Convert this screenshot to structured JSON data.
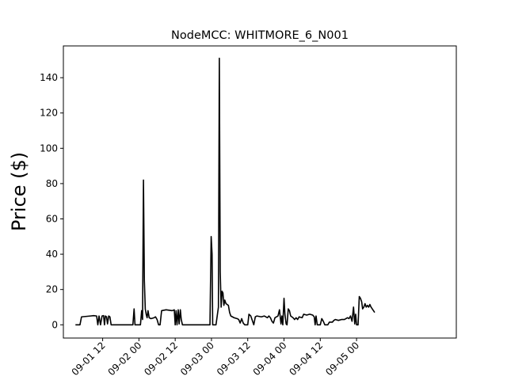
{
  "chart_data": {
    "type": "line",
    "title": "NodeMCC: WHITMORE_6_N001",
    "xlabel": "",
    "ylabel": "Price ($)",
    "xlim": [
      -0.083,
      10.75
    ],
    "ylim": [
      -7.5,
      158
    ],
    "x_unit": "hours since 09-01 00:00",
    "x_ticks": [
      {
        "value": 12,
        "label": "09-01 12"
      },
      {
        "value": 24,
        "label": "09-02 00"
      },
      {
        "value": 36,
        "label": "09-02 12"
      },
      {
        "value": 48,
        "label": "09-03 00"
      },
      {
        "value": 60,
        "label": "09-03 12"
      },
      {
        "value": 72,
        "label": "09-04 00"
      },
      {
        "value": 84,
        "label": "09-04 12"
      },
      {
        "value": 96,
        "label": "09-05 00"
      }
    ],
    "y_ticks": [
      0,
      20,
      40,
      60,
      80,
      100,
      120,
      140
    ],
    "grid": false,
    "legend": "none",
    "series": [
      {
        "name": "",
        "color": "#000000",
        "points": [
          [
            3.0,
            0
          ],
          [
            4.5,
            0
          ],
          [
            5.0,
            4.5
          ],
          [
            8.0,
            5.0
          ],
          [
            9.0,
            5.2
          ],
          [
            10.0,
            5.0
          ],
          [
            10.4,
            0
          ],
          [
            10.8,
            5.0
          ],
          [
            11.3,
            0
          ],
          [
            11.8,
            5.0
          ],
          [
            12.3,
            5.2
          ],
          [
            12.6,
            0
          ],
          [
            12.9,
            5.0
          ],
          [
            13.3,
            4.5
          ],
          [
            13.6,
            0.5
          ],
          [
            14.0,
            5.0
          ],
          [
            14.4,
            4.5
          ],
          [
            14.8,
            0
          ],
          [
            22.0,
            0
          ],
          [
            22.4,
            9.0
          ],
          [
            22.7,
            0
          ],
          [
            24.5,
            0
          ],
          [
            24.9,
            8.0
          ],
          [
            25.2,
            3.0
          ],
          [
            25.5,
            82.0
          ],
          [
            25.8,
            25.0
          ],
          [
            26.1,
            9.0
          ],
          [
            26.4,
            6.0
          ],
          [
            26.7,
            4.0
          ],
          [
            27.0,
            8.0
          ],
          [
            27.4,
            4.0
          ],
          [
            28.0,
            3.5
          ],
          [
            29.0,
            4.0
          ],
          [
            29.5,
            4.5
          ],
          [
            30.0,
            3.0
          ],
          [
            30.5,
            0
          ],
          [
            31.0,
            0
          ],
          [
            31.5,
            8.0
          ],
          [
            33.0,
            8.5
          ],
          [
            35.0,
            8.0
          ],
          [
            35.7,
            8.5
          ],
          [
            36.0,
            0
          ],
          [
            36.3,
            8.0
          ],
          [
            36.6,
            0
          ],
          [
            37.0,
            8.5
          ],
          [
            37.3,
            0.5
          ],
          [
            37.7,
            8.5
          ],
          [
            38.0,
            3.0
          ],
          [
            38.4,
            0
          ],
          [
            47.5,
            0
          ],
          [
            47.9,
            50.0
          ],
          [
            48.2,
            40.0
          ],
          [
            48.4,
            0
          ],
          [
            49.5,
            0
          ],
          [
            50.3,
            10.0
          ],
          [
            50.6,
            151.0
          ],
          [
            50.9,
            30.0
          ],
          [
            51.2,
            10.0
          ],
          [
            51.5,
            19.0
          ],
          [
            51.8,
            18.0
          ],
          [
            52.1,
            11.0
          ],
          [
            52.4,
            14.0
          ],
          [
            52.8,
            12.0
          ],
          [
            53.2,
            11.5
          ],
          [
            53.6,
            11.0
          ],
          [
            54.0,
            7.0
          ],
          [
            54.4,
            5.0
          ],
          [
            55.5,
            4.0
          ],
          [
            56.5,
            3.5
          ],
          [
            57.0,
            3.0
          ],
          [
            57.5,
            1.0
          ],
          [
            58.0,
            3.5
          ],
          [
            58.5,
            1.0
          ],
          [
            59.0,
            0
          ],
          [
            60.0,
            0
          ],
          [
            60.4,
            6.0
          ],
          [
            61.0,
            5.0
          ],
          [
            62.0,
            0
          ],
          [
            62.5,
            4.5
          ],
          [
            63.0,
            5.0
          ],
          [
            64.5,
            4.5
          ],
          [
            65.5,
            5.0
          ],
          [
            66.5,
            4.0
          ],
          [
            67.0,
            5.0
          ],
          [
            67.5,
            4.0
          ],
          [
            68.0,
            2.0
          ],
          [
            68.5,
            1.0
          ],
          [
            69.0,
            4.0
          ],
          [
            70.0,
            5.0
          ],
          [
            70.5,
            8.5
          ],
          [
            71.0,
            0.5
          ],
          [
            71.3,
            5.0
          ],
          [
            71.6,
            0
          ],
          [
            72.0,
            15.0
          ],
          [
            72.3,
            6.0
          ],
          [
            72.7,
            0.5
          ],
          [
            73.0,
            0
          ],
          [
            73.4,
            9.0
          ],
          [
            73.8,
            8.0
          ],
          [
            74.2,
            5.0
          ],
          [
            75.0,
            4.0
          ],
          [
            75.5,
            3.0
          ],
          [
            76.0,
            4.0
          ],
          [
            76.5,
            3.0
          ],
          [
            77.0,
            4.5
          ],
          [
            78.0,
            4.0
          ],
          [
            78.5,
            6.0
          ],
          [
            79.5,
            5.5
          ],
          [
            80.5,
            6.0
          ],
          [
            81.5,
            5.5
          ],
          [
            82.0,
            4.5
          ],
          [
            82.3,
            0
          ],
          [
            82.6,
            5.0
          ],
          [
            83.0,
            0
          ],
          [
            84.0,
            0
          ],
          [
            84.5,
            3.5
          ],
          [
            85.0,
            2.0
          ],
          [
            85.5,
            0
          ],
          [
            86.5,
            0
          ],
          [
            87.0,
            1.5
          ],
          [
            88.0,
            1.5
          ],
          [
            88.5,
            2.5
          ],
          [
            89.0,
            3.0
          ],
          [
            90.0,
            2.5
          ],
          [
            91.0,
            3.0
          ],
          [
            92.0,
            3.0
          ],
          [
            93.0,
            4.0
          ],
          [
            93.5,
            3.5
          ],
          [
            94.0,
            5.0
          ],
          [
            94.5,
            2.0
          ],
          [
            95.0,
            10.0
          ],
          [
            95.4,
            0.5
          ],
          [
            95.7,
            6.0
          ],
          [
            96.0,
            0
          ],
          [
            96.5,
            0
          ],
          [
            96.9,
            16.0
          ],
          [
            97.3,
            15.0
          ],
          [
            97.7,
            13.0
          ],
          [
            98.0,
            9.0
          ],
          [
            98.4,
            10.0
          ],
          [
            98.8,
            12.0
          ],
          [
            99.2,
            10.0
          ],
          [
            99.6,
            11.0
          ],
          [
            100.0,
            10.0
          ],
          [
            100.4,
            11.5
          ],
          [
            100.8,
            10.0
          ],
          [
            101.2,
            9.0
          ],
          [
            101.6,
            8.0
          ],
          [
            102.0,
            7.0
          ]
        ]
      }
    ]
  }
}
